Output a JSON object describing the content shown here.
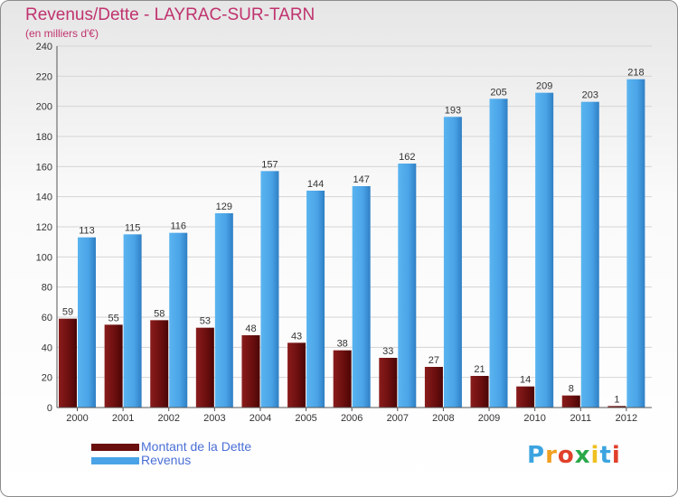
{
  "chart_data": {
    "type": "bar",
    "title": "Revenus/Dette - LAYRAC-SUR-TARN",
    "subtitle": "(en milliers d'€)",
    "xlabel": "",
    "ylabel": "",
    "categories": [
      "2000",
      "2001",
      "2002",
      "2003",
      "2004",
      "2005",
      "2006",
      "2007",
      "2008",
      "2009",
      "2010",
      "2011",
      "2012"
    ],
    "series": [
      {
        "name": "Montant de la Dette",
        "color": "#7a1414",
        "values": [
          59,
          55,
          58,
          53,
          48,
          43,
          38,
          33,
          27,
          21,
          14,
          8,
          1
        ]
      },
      {
        "name": "Revenus",
        "color": "#4aa3e6",
        "values": [
          113,
          115,
          116,
          129,
          157,
          144,
          147,
          162,
          193,
          205,
          209,
          203,
          218
        ]
      }
    ],
    "ylim": [
      0,
      240
    ],
    "yticks": [
      0,
      20,
      40,
      60,
      80,
      100,
      120,
      140,
      160,
      180,
      200,
      220,
      240
    ],
    "grid": true,
    "legend": "bottom-left"
  },
  "brand": {
    "letters": [
      "P",
      "r",
      "o",
      "x",
      "i",
      "t",
      "i"
    ],
    "colors": [
      "#3ba4e0",
      "#f0a020",
      "#e0402a",
      "#2aa84a",
      "#f0c020",
      "#3ba4e0",
      "#e0402a"
    ]
  }
}
